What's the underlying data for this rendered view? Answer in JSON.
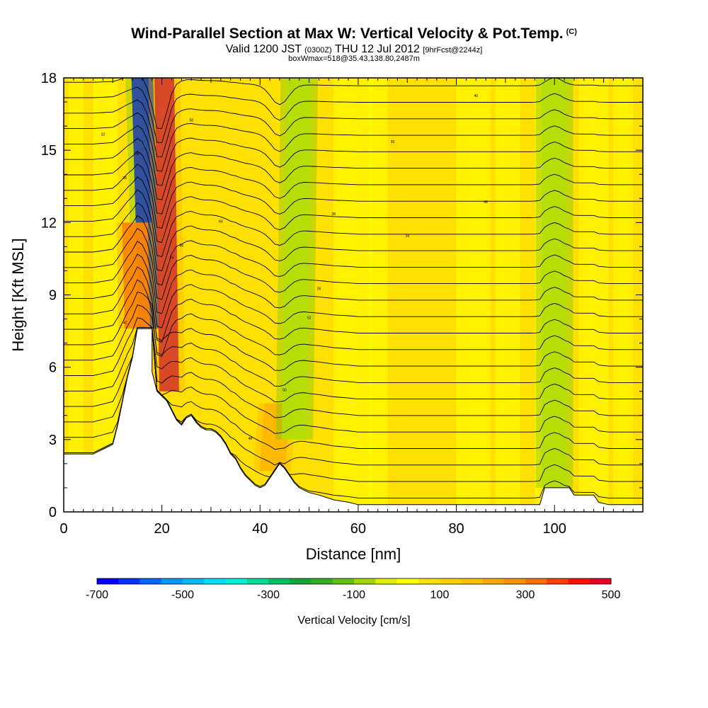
{
  "header": {
    "title": "Wind-Parallel Section at Max W: Vertical Velocity & Pot.Temp.",
    "title_mark": "(C)",
    "valid_prefix": "Valid 1200 JST",
    "valid_utc": "(0300Z)",
    "valid_date": "THU 12 Jul 2012",
    "forecast": "[9hrFcst@2244z]",
    "boxmax": "boxWmax=518@35.43,138.80,2487m"
  },
  "chart_data": {
    "type": "heatmap",
    "xlabel": "Distance [nm]",
    "ylabel": "Height [Kft MSL]",
    "xlim": [
      0,
      118
    ],
    "ylim": [
      0,
      18
    ],
    "xticks": [
      0,
      20,
      40,
      60,
      80,
      100
    ],
    "yticks": [
      0,
      3,
      6,
      9,
      12,
      15,
      18
    ],
    "colorbar": {
      "label": "Vertical Velocity [cm/s]",
      "range": [
        -700,
        500
      ],
      "step": 50,
      "ticks": [
        -700,
        -500,
        -300,
        -100,
        100,
        300,
        500
      ],
      "colors": [
        "#0000ff",
        "#0033ff",
        "#0066ff",
        "#0099ff",
        "#00bbff",
        "#00ddff",
        "#00f0e0",
        "#00dd99",
        "#00c060",
        "#10a830",
        "#30b020",
        "#60c010",
        "#a0d800",
        "#e0f000",
        "#ffff00",
        "#ffe000",
        "#ffd000",
        "#ffc000",
        "#ffa800",
        "#ff9000",
        "#ff7000",
        "#ff4000",
        "#ff1000",
        "#e80020",
        "#c00040",
        "#a00060",
        "#800080",
        "#5a1a8a"
      ]
    },
    "terrain": [
      [
        0,
        2.4
      ],
      [
        6,
        2.4
      ],
      [
        8,
        2.6
      ],
      [
        10,
        2.8
      ],
      [
        11,
        3.6
      ],
      [
        12,
        4.6
      ],
      [
        13,
        5.6
      ],
      [
        14,
        6.4
      ],
      [
        15,
        7.6
      ],
      [
        18,
        7.6
      ],
      [
        18,
        5.8
      ],
      [
        19,
        5.0
      ],
      [
        20,
        4.8
      ],
      [
        21,
        4.6
      ],
      [
        22,
        4.2
      ],
      [
        23,
        3.8
      ],
      [
        24,
        3.6
      ],
      [
        25,
        3.9
      ],
      [
        26,
        4.0
      ],
      [
        27,
        3.7
      ],
      [
        28,
        3.5
      ],
      [
        29,
        3.4
      ],
      [
        30,
        3.4
      ],
      [
        31,
        3.3
      ],
      [
        32,
        3.1
      ],
      [
        33,
        2.8
      ],
      [
        34,
        2.4
      ],
      [
        35,
        2.2
      ],
      [
        36,
        1.8
      ],
      [
        37,
        1.5
      ],
      [
        38,
        1.3
      ],
      [
        39,
        1.1
      ],
      [
        40,
        1.0
      ],
      [
        41,
        1.1
      ],
      [
        42,
        1.4
      ],
      [
        43,
        1.7
      ],
      [
        44,
        2.0
      ],
      [
        45,
        1.8
      ],
      [
        46,
        1.5
      ],
      [
        47,
        1.2
      ],
      [
        48,
        1.0
      ],
      [
        49,
        0.9
      ],
      [
        50,
        0.8
      ],
      [
        52,
        0.7
      ],
      [
        55,
        0.5
      ],
      [
        58,
        0.4
      ],
      [
        60,
        0.3
      ],
      [
        95,
        0.3
      ],
      [
        97,
        0.3
      ],
      [
        98,
        1.0
      ],
      [
        103,
        1.0
      ],
      [
        104,
        0.7
      ],
      [
        108,
        0.7
      ],
      [
        109,
        0.4
      ],
      [
        111,
        0.3
      ],
      [
        118,
        0.3
      ]
    ],
    "features": [
      {
        "name": "downdraft core",
        "x": 17.5,
        "x_top": 16.0,
        "y_bottom": 7.6,
        "y_top": 18,
        "value": -700
      },
      {
        "name": "updraft core",
        "x": 21.5,
        "x_top": 20.5,
        "y_bottom": 5.0,
        "y_top": 18,
        "value": 500
      },
      {
        "name": "updraft flank",
        "x": 15.0,
        "x_top": 14.5,
        "y_bottom": 7.6,
        "y_top": 12,
        "value": 300
      },
      {
        "name": "lee wave updraft",
        "x": 42.5,
        "x_top": 43.5,
        "y_bottom": 1.7,
        "y_top": 4.5,
        "value": 150
      },
      {
        "name": "upper wave",
        "x": 47,
        "x_top": 48,
        "y_bottom": 3,
        "y_top": 18,
        "value": -50
      },
      {
        "name": "trapped wave",
        "x": 100,
        "x_top": 100,
        "y_bottom": 1,
        "y_top": 18,
        "value": -50
      }
    ],
    "isentrope_labels": [
      "46",
      "40",
      "34",
      "30",
      "28",
      "26",
      "52",
      "50",
      "48",
      "44",
      "42",
      "38",
      "36",
      "32",
      "54",
      "56",
      "58",
      "60"
    ]
  }
}
